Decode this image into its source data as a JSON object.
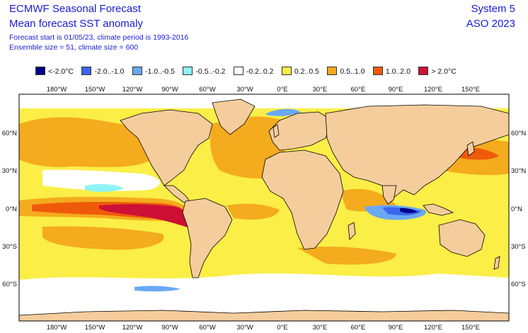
{
  "header": {
    "title": "ECMWF Seasonal Forecast",
    "subtitle": "Mean forecast SST anomaly",
    "forecast_info": "Forecast start is 01/05/23, climate period is 1993-2016",
    "ensemble_info": "Ensemble size = 51, climate size = 600",
    "system": "System 5",
    "period": "ASO 2023"
  },
  "legend": [
    {
      "label": "<-2.0°C",
      "color": "#00008b"
    },
    {
      "label": "-2.0..-1.0",
      "color": "#3c66ee"
    },
    {
      "label": "-1.0..-0.5",
      "color": "#6aa8f4"
    },
    {
      "label": "-0.5..-0.2",
      "color": "#8ff3f5"
    },
    {
      "label": "-0.2..0.2",
      "color": "#ffffff"
    },
    {
      "label": "0.2..0.5",
      "color": "#fbee46"
    },
    {
      "label": "0.5..1.0",
      "color": "#f4ab1e"
    },
    {
      "label": "1.0..2.0",
      "color": "#ee5a0a"
    },
    {
      "label": "> 2.0°C",
      "color": "#cd1035"
    }
  ],
  "axes": {
    "lon_labels": [
      "180°W",
      "150°W",
      "120°W",
      "90°W",
      "60°W",
      "30°W",
      "0°E",
      "30°E",
      "60°E",
      "90°E",
      "120°E",
      "150°E"
    ],
    "lat_labels": [
      "60°N",
      "30°N",
      "0°N",
      "30°S",
      "60°S"
    ]
  },
  "colors": {
    "land": "#f5cd9c",
    "ocean_neutral": "#ffffff",
    "coastline": "#000000"
  }
}
